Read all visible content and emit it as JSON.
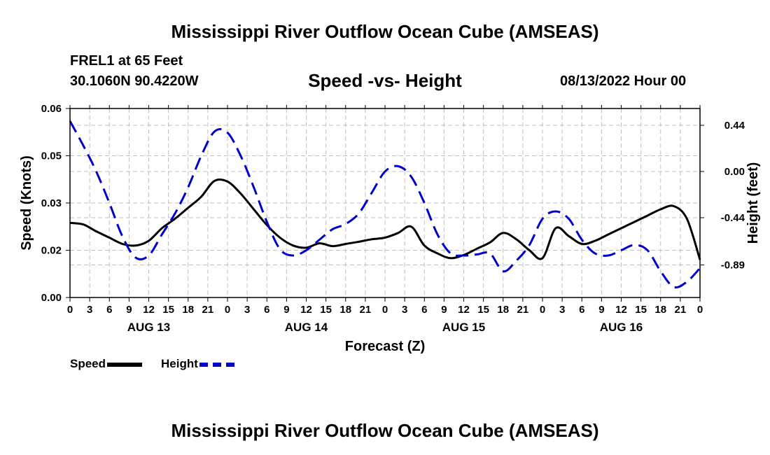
{
  "header": {
    "title": "Mississippi River Outflow Ocean Cube (AMSEAS)",
    "station": "FREL1 at 65 Feet",
    "coords": "30.1060N  90.4220W",
    "subtitle": "Speed -vs- Height",
    "datetime": "08/13/2022 Hour 00"
  },
  "footer": {
    "title": "Mississippi River Outflow Ocean Cube (AMSEAS)"
  },
  "colors": {
    "speed": "#000000",
    "height": "#0000cc",
    "grid": "#bfbfbf"
  },
  "chart_data": {
    "type": "line",
    "title": "Speed -vs- Height",
    "xlabel": "Forecast (Z)",
    "ylabel": "Speed (Knots)",
    "y2label": "Height (feet)",
    "xlim": [
      0,
      96
    ],
    "ylim": [
      0,
      0.06
    ],
    "y2lim": [
      -1.2,
      0.6
    ],
    "x_ticks": [
      0,
      3,
      6,
      9,
      12,
      15,
      18,
      21,
      24,
      27,
      30,
      33,
      36,
      39,
      42,
      45,
      48,
      51,
      54,
      57,
      60,
      63,
      66,
      69,
      72,
      75,
      78,
      81,
      84,
      87,
      90,
      93,
      96
    ],
    "x_tick_labels": [
      "0",
      "3",
      "6",
      "9",
      "12",
      "15",
      "18",
      "21",
      "0",
      "3",
      "6",
      "9",
      "12",
      "15",
      "18",
      "21",
      "0",
      "3",
      "6",
      "9",
      "12",
      "15",
      "18",
      "21",
      "0",
      "3",
      "6",
      "9",
      "12",
      "15",
      "18",
      "21",
      "0"
    ],
    "y_ticks": [
      0,
      0.015,
      0.03,
      0.045,
      0.06
    ],
    "y_tick_labels": [
      "0.00",
      "0.02",
      "0.03",
      "0.05",
      "0.06"
    ],
    "y2_ticks": [
      -0.89,
      -0.44,
      0.0,
      0.44
    ],
    "y2_tick_labels": [
      "-0.89",
      "-0.44",
      "0.00",
      "0.44"
    ],
    "day_labels": [
      {
        "x": 12,
        "label": "AUG 13"
      },
      {
        "x": 36,
        "label": "AUG 14"
      },
      {
        "x": 60,
        "label": "AUG 15"
      },
      {
        "x": 84,
        "label": "AUG 16"
      }
    ],
    "series": [
      {
        "name": "Speed",
        "axis": "left",
        "style": "solid",
        "x": [
          0,
          2,
          4,
          6,
          8,
          10,
          12,
          14,
          16,
          18,
          20,
          22,
          24,
          26,
          28,
          30,
          32,
          34,
          36,
          38,
          40,
          42,
          44,
          46,
          48,
          50,
          52,
          54,
          56,
          58,
          60,
          62,
          64,
          66,
          68,
          70,
          72,
          74,
          76,
          78,
          80,
          82,
          84,
          86,
          88,
          90,
          92,
          94,
          96
        ],
        "values": [
          0.0237,
          0.0232,
          0.021,
          0.019,
          0.017,
          0.0165,
          0.018,
          0.022,
          0.025,
          0.0285,
          0.032,
          0.037,
          0.0368,
          0.033,
          0.028,
          0.023,
          0.019,
          0.0165,
          0.0158,
          0.0172,
          0.0163,
          0.017,
          0.0177,
          0.0185,
          0.019,
          0.0205,
          0.0225,
          0.0165,
          0.014,
          0.0125,
          0.0135,
          0.0155,
          0.0175,
          0.0205,
          0.0185,
          0.015,
          0.0125,
          0.022,
          0.0195,
          0.017,
          0.018,
          0.02,
          0.022,
          0.024,
          0.026,
          0.028,
          0.029,
          0.025,
          0.012
        ]
      },
      {
        "name": "Height",
        "axis": "right",
        "style": "dashed",
        "x": [
          0,
          2,
          4,
          6,
          8,
          10,
          12,
          14,
          16,
          18,
          20,
          22,
          24,
          26,
          28,
          30,
          32,
          34,
          36,
          38,
          40,
          42,
          44,
          46,
          48,
          50,
          52,
          54,
          56,
          58,
          60,
          62,
          64,
          66,
          68,
          70,
          72,
          74,
          76,
          78,
          80,
          82,
          84,
          86,
          88,
          90,
          92,
          94,
          96
        ],
        "values": [
          0.48,
          0.25,
          0.0,
          -0.3,
          -0.62,
          -0.82,
          -0.8,
          -0.6,
          -0.4,
          -0.15,
          0.15,
          0.38,
          0.37,
          0.15,
          -0.15,
          -0.48,
          -0.74,
          -0.8,
          -0.75,
          -0.65,
          -0.55,
          -0.5,
          -0.4,
          -0.2,
          0.0,
          0.05,
          -0.05,
          -0.3,
          -0.6,
          -0.78,
          -0.8,
          -0.79,
          -0.78,
          -0.95,
          -0.85,
          -0.7,
          -0.45,
          -0.38,
          -0.45,
          -0.65,
          -0.78,
          -0.8,
          -0.75,
          -0.7,
          -0.75,
          -0.95,
          -1.1,
          -1.05,
          -0.92
        ]
      }
    ],
    "legend": [
      {
        "label": "Speed",
        "style": "solid"
      },
      {
        "label": "Height",
        "style": "dashed"
      }
    ]
  }
}
